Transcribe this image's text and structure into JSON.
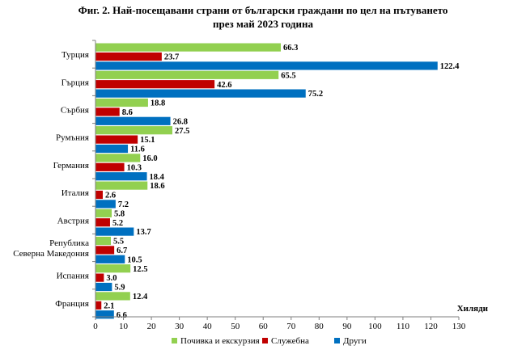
{
  "chart_data": {
    "type": "bar",
    "orientation": "horizontal",
    "title_lines": [
      "Фиг. 2. Най-посещавани страни от български граждани по цел на пътуването",
      "през май 2023 година"
    ],
    "categories": [
      [
        "Турция"
      ],
      [
        "Гърция"
      ],
      [
        "Сърбия"
      ],
      [
        "Румъния"
      ],
      [
        "Германия"
      ],
      [
        "Италия"
      ],
      [
        "Австрия"
      ],
      [
        "Република",
        "Северна Македония"
      ],
      [
        "Испания"
      ],
      [
        "Франция"
      ]
    ],
    "series": [
      {
        "name": "Почивка и екскурзия",
        "color": "#92d050",
        "values": [
          66.3,
          65.5,
          18.8,
          27.5,
          16.0,
          18.6,
          5.8,
          5.5,
          12.5,
          12.4
        ]
      },
      {
        "name": "Служебна",
        "color": "#c00000",
        "values": [
          23.7,
          42.6,
          8.6,
          15.1,
          10.3,
          2.6,
          5.2,
          6.7,
          3.0,
          2.1
        ]
      },
      {
        "name": "Други",
        "color": "#0070c0",
        "values": [
          122.4,
          75.2,
          26.8,
          11.6,
          18.4,
          7.2,
          13.7,
          10.5,
          5.9,
          6.6
        ]
      }
    ],
    "xlabel": "Хиляди",
    "xlim": [
      0,
      130
    ],
    "xticks": [
      0,
      10,
      20,
      30,
      40,
      50,
      60,
      70,
      80,
      90,
      100,
      110,
      120,
      130
    ],
    "legend_position": "bottom",
    "grid": false
  }
}
